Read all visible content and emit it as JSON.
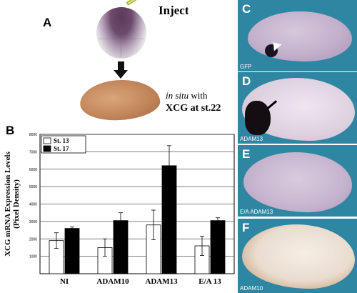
{
  "panel_a": {
    "letter": "A",
    "inject_label": "Inject",
    "insitu_italic": "in situ",
    "insitu_rest": " with",
    "insitu_line2": "XCG at st.22"
  },
  "panel_b": {
    "letter": "B"
  },
  "photos": [
    {
      "letter": "C",
      "caption": "GFP",
      "bg": "#2f86a3"
    },
    {
      "letter": "D",
      "caption": "ADAM13",
      "bg": "#2f86a3"
    },
    {
      "letter": "E",
      "caption": "E/A ADAM13",
      "bg": "#2f86a3"
    },
    {
      "letter": "F",
      "caption": "ADAM10",
      "bg": "#2f86a3"
    }
  ],
  "chart_data": {
    "type": "bar",
    "ylabel": "XCG mRNA Expression Levels (Pixel Density)",
    "categories": [
      "NI",
      "ADAM10",
      "ADAM13",
      "E/A 13"
    ],
    "series": [
      {
        "name": "St. 13",
        "color": "#ffffff",
        "values": [
          1900,
          1500,
          2800,
          1600
        ],
        "errors": [
          450,
          500,
          850,
          550
        ]
      },
      {
        "name": "St. 17",
        "color": "#000000",
        "values": [
          2600,
          3050,
          6200,
          3050
        ],
        "errors": [
          80,
          450,
          1150,
          160
        ]
      }
    ],
    "ylim": [
      0,
      8000
    ],
    "yticks": [
      1000,
      2000,
      3000,
      4000,
      5000,
      6000,
      7000,
      8000
    ],
    "legend_position": "top-left",
    "grid": true
  }
}
